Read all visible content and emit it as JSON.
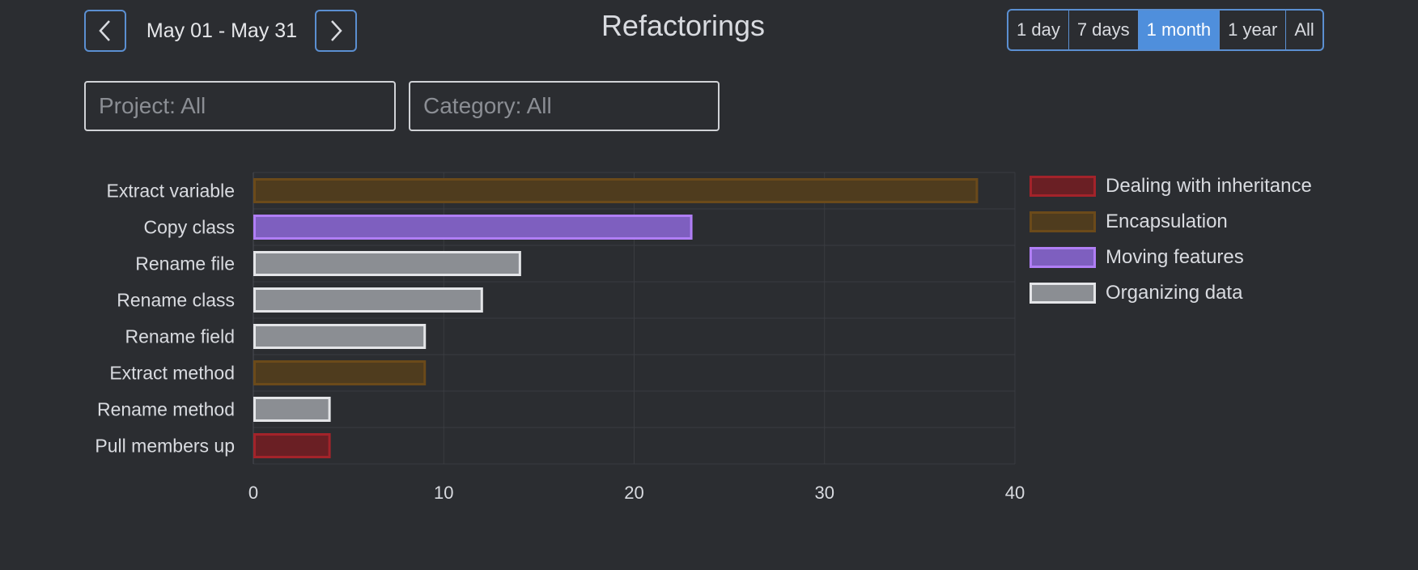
{
  "header": {
    "prev_icon": "chevron-left-icon",
    "next_icon": "chevron-right-icon",
    "date_range": "May 01 - May 31",
    "title": "Refactorings",
    "ranges": [
      {
        "label": "1 day",
        "active": false
      },
      {
        "label": "7 days",
        "active": false
      },
      {
        "label": "1 month",
        "active": true
      },
      {
        "label": "1 year",
        "active": false
      },
      {
        "label": "All",
        "active": false
      }
    ]
  },
  "filters": {
    "project_placeholder": "Project: All",
    "category_placeholder": "Category: All"
  },
  "colors": {
    "Dealing with inheritance": {
      "fill": "#6a1f24",
      "stroke": "#a3232a"
    },
    "Encapsulation": {
      "fill": "#4f3c1e",
      "stroke": "#6b4a1a"
    },
    "Moving features": {
      "fill": "#7e5fbf",
      "stroke": "#b07ef5"
    },
    "Organizing data": {
      "fill": "#8b8e93",
      "stroke": "#e4e5e8"
    }
  },
  "chart_data": {
    "type": "bar",
    "orientation": "horizontal",
    "categories": [
      "Extract variable",
      "Copy class",
      "Rename file",
      "Rename class",
      "Rename field",
      "Extract method",
      "Rename method",
      "Pull members up"
    ],
    "values": [
      38,
      23,
      14,
      12,
      9,
      9,
      4,
      4
    ],
    "bar_groups": [
      "Encapsulation",
      "Moving features",
      "Organizing data",
      "Organizing data",
      "Organizing data",
      "Encapsulation",
      "Organizing data",
      "Dealing with inheritance"
    ],
    "xlim": [
      0,
      40
    ],
    "xticks": [
      0,
      10,
      20,
      30,
      40
    ],
    "grid": true,
    "legend": {
      "placement": "right",
      "entries": [
        "Dealing with inheritance",
        "Encapsulation",
        "Moving features",
        "Organizing data"
      ]
    }
  }
}
